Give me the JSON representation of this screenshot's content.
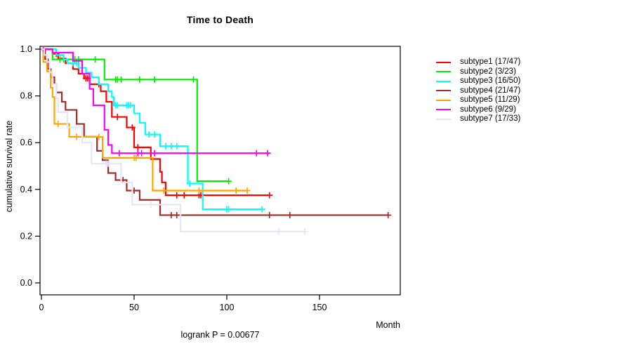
{
  "chart_data": {
    "type": "line",
    "variant": "kaplan-meier-step",
    "title": "Time to Death",
    "xlabel": "Month",
    "ylabel": "cumulative survival rate",
    "caption": "logrank P = 0.00677",
    "xlim": [
      0,
      193
    ],
    "ylim": [
      0,
      1
    ],
    "xticks": [
      0,
      50,
      100,
      150
    ],
    "yticks": [
      0.0,
      0.2,
      0.4,
      0.6,
      0.8,
      1.0
    ],
    "grid": false,
    "legend_position": "right",
    "series": [
      {
        "name": "subtype1",
        "label": "subtype1 (17/47)",
        "color": "#ff0000",
        "t": [
          0,
          6,
          9,
          13,
          17,
          20,
          23,
          26,
          32,
          35,
          38,
          46,
          50,
          59,
          64,
          65,
          67
        ],
        "s": [
          1,
          0.98,
          0.96,
          0.94,
          0.915,
          0.895,
          0.875,
          0.85,
          0.82,
          0.775,
          0.71,
          0.665,
          0.58,
          0.53,
          0.475,
          0.43,
          0.375
        ],
        "end": 123,
        "censors": [
          8,
          24,
          25,
          31,
          41,
          49,
          52,
          73,
          77,
          85,
          86,
          123
        ]
      },
      {
        "name": "subtype2",
        "label": "subtype2 (3/23)",
        "color": "#00ee00",
        "t": [
          0,
          6,
          34,
          84
        ],
        "s": [
          1,
          0.956,
          0.87,
          0.435
        ],
        "end": 101,
        "censors": [
          10,
          12,
          18,
          20,
          29,
          40,
          41,
          43,
          53,
          61,
          82,
          101
        ]
      },
      {
        "name": "subtype3",
        "label": "subtype3 (16/50)",
        "color": "#00ffff",
        "t": [
          0,
          8,
          12,
          14,
          20,
          24,
          27,
          31,
          36,
          38,
          39,
          50,
          53,
          56,
          64,
          79,
          87
        ],
        "s": [
          1,
          0.975,
          0.955,
          0.94,
          0.92,
          0.9,
          0.88,
          0.85,
          0.82,
          0.795,
          0.76,
          0.725,
          0.685,
          0.635,
          0.585,
          0.425,
          0.315
        ],
        "end": 119,
        "censors": [
          17,
          19,
          40,
          41,
          46,
          47,
          48,
          58,
          61,
          67,
          70,
          73,
          80,
          100,
          101,
          119
        ]
      },
      {
        "name": "subtype4",
        "label": "subtype4 (21/47)",
        "color": "#a52a2a",
        "t": [
          0,
          2,
          3.5,
          5,
          7,
          8,
          11,
          13,
          19,
          23,
          30,
          33,
          36,
          40,
          46,
          53,
          64
        ],
        "s": [
          1,
          0.957,
          0.915,
          0.88,
          0.85,
          0.815,
          0.775,
          0.74,
          0.68,
          0.625,
          0.565,
          0.525,
          0.47,
          0.44,
          0.395,
          0.355,
          0.29
        ],
        "end": 187,
        "censors": [
          44,
          50,
          70,
          73,
          123,
          134,
          187
        ]
      },
      {
        "name": "subtype5",
        "label": "subtype5 (11/29)",
        "color": "#ffa500",
        "t": [
          0,
          1,
          3,
          5,
          6,
          7,
          15,
          33,
          60
        ],
        "s": [
          1,
          0.945,
          0.905,
          0.835,
          0.795,
          0.68,
          0.625,
          0.535,
          0.395
        ],
        "end": 111,
        "censors": [
          9,
          19,
          31,
          50,
          51,
          66,
          85,
          105,
          111
        ]
      },
      {
        "name": "subtype6",
        "label": "subtype6 (9/29)",
        "color": "#ff00ff",
        "t": [
          0,
          6,
          17,
          22,
          26,
          28,
          34,
          36,
          38
        ],
        "s": [
          1,
          0.985,
          0.95,
          0.895,
          0.83,
          0.76,
          0.655,
          0.59,
          0.555
        ],
        "end": 123,
        "censors": [
          1,
          42,
          52,
          54,
          61,
          116,
          122
        ]
      },
      {
        "name": "subtype7",
        "label": "subtype7 (17/33)",
        "color": "#e6e6fa",
        "t": [
          0,
          1.5,
          3,
          4.5,
          6,
          8,
          9,
          14,
          22,
          27,
          43,
          49,
          75
        ],
        "s": [
          1,
          0.975,
          0.945,
          0.9,
          0.85,
          0.79,
          0.73,
          0.665,
          0.6,
          0.51,
          0.43,
          0.335,
          0.22
        ],
        "end": 142,
        "censors": [
          35,
          36,
          59,
          128,
          142
        ]
      }
    ]
  }
}
